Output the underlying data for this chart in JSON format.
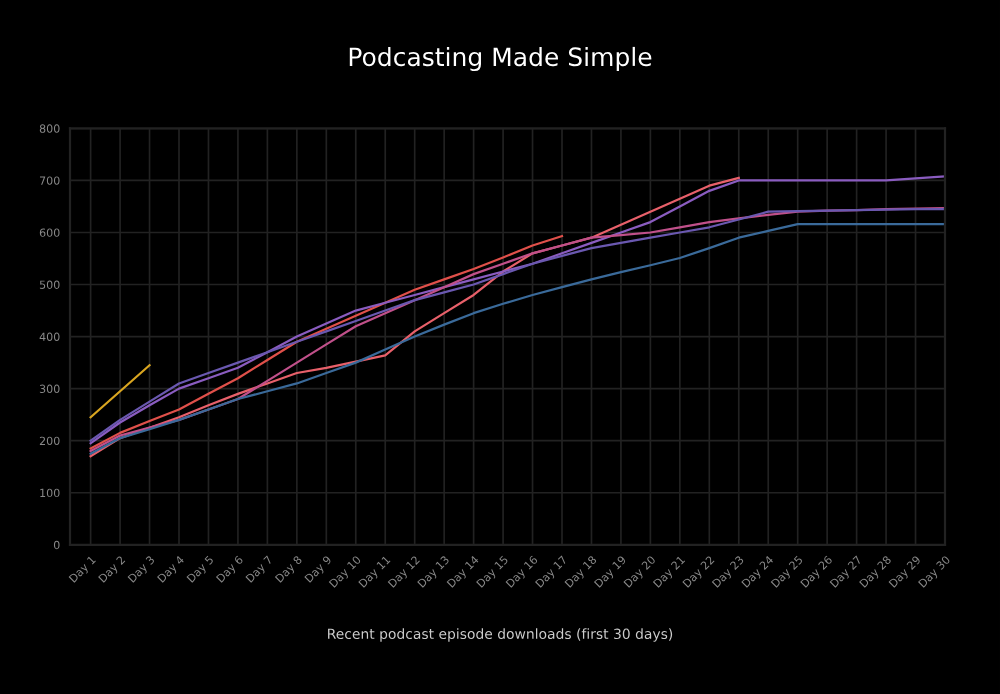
{
  "chart_data": {
    "type": "line",
    "title": "Podcasting Made Simple",
    "annotations": [
      "Recent podcast episode downloads (first 30 days)"
    ],
    "categories": [
      "Day 1",
      "Day 2",
      "Day 3",
      "Day 4",
      "Day 5",
      "Day 6",
      "Day 7",
      "Day 8",
      "Day 9",
      "Day 10",
      "Day 11",
      "Day 12",
      "Day 13",
      "Day 14",
      "Day 15",
      "Day 16",
      "Day 17",
      "Day 18",
      "Day 19",
      "Day 20",
      "Day 21",
      "Day 22",
      "Day 23",
      "Day 24",
      "Day 25",
      "Day 26",
      "Day 27",
      "Day 28",
      "Day 29",
      "Day 30"
    ],
    "ylim": [
      0,
      800
    ],
    "yticks": [
      0,
      100,
      200,
      300,
      400,
      500,
      600,
      700,
      800
    ],
    "grid": true,
    "legend": false,
    "marker": "none",
    "line_style": "solid",
    "series": [
      {
        "color": "#d9a520",
        "values": [
          245,
          295,
          345,
          null,
          null,
          null,
          null,
          null,
          null,
          null,
          null,
          null,
          null,
          null,
          null,
          null,
          null,
          null,
          null,
          null,
          null,
          null,
          null,
          null,
          null,
          null,
          null,
          null,
          null,
          null
        ]
      },
      {
        "color": "#e0504a",
        "values": [
          185,
          215,
          238,
          260,
          290,
          320,
          355,
          390,
          415,
          440,
          465,
          490,
          510,
          530,
          552,
          575,
          593,
          null,
          null,
          null,
          null,
          null,
          null,
          null,
          null,
          null,
          null,
          null,
          null,
          null
        ]
      },
      {
        "color": "#e8606a",
        "values": [
          170,
          205,
          225,
          245,
          268,
          290,
          310,
          330,
          340,
          352,
          364,
          410,
          445,
          480,
          525,
          560,
          575,
          590,
          615,
          640,
          665,
          690,
          705,
          null,
          null,
          null,
          null,
          null,
          null,
          null
        ]
      },
      {
        "color": "#8a5cc0",
        "values": [
          195,
          235,
          268,
          300,
          320,
          340,
          370,
          400,
          425,
          450,
          465,
          480,
          495,
          510,
          525,
          540,
          560,
          580,
          600,
          620,
          650,
          680,
          700,
          700,
          700,
          700,
          700,
          700,
          704,
          708
        ]
      },
      {
        "color": "#c0508a",
        "values": [
          180,
          210,
          225,
          240,
          260,
          280,
          315,
          350,
          385,
          420,
          445,
          470,
          495,
          520,
          540,
          560,
          575,
          590,
          595,
          600,
          610,
          620,
          627,
          634,
          640,
          642,
          643,
          645,
          646,
          647
        ]
      },
      {
        "color": "#6a58b0",
        "values": [
          200,
          240,
          275,
          310,
          330,
          350,
          370,
          390,
          410,
          430,
          450,
          470,
          485,
          500,
          520,
          540,
          555,
          570,
          580,
          590,
          600,
          610,
          625,
          640,
          641,
          642,
          643,
          644,
          645,
          645
        ]
      },
      {
        "color": "#3a6a9a",
        "values": [
          175,
          205,
          222,
          240,
          260,
          280,
          295,
          310,
          330,
          350,
          375,
          400,
          423,
          445,
          463,
          480,
          495,
          510,
          524,
          537,
          551,
          570,
          590,
          603,
          616,
          616,
          616,
          616,
          616,
          616
        ]
      }
    ]
  }
}
